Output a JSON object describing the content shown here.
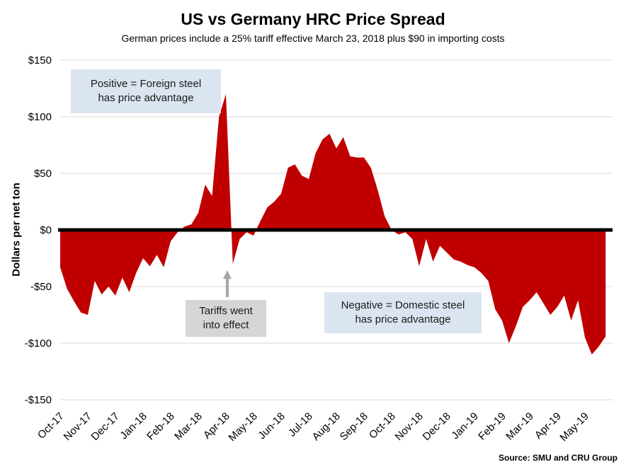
{
  "header": {
    "title": "US vs Germany HRC Price Spread",
    "subtitle": "German prices include a 25% tariff effective March 23, 2018 plus $90 in importing costs"
  },
  "chart_data": {
    "type": "area",
    "title": "US vs Germany HRC Price Spread",
    "subtitle": "German prices include a 25% tariff effective March 23, 2018 plus $90 in importing costs",
    "xlabel": "",
    "ylabel": "Dollars per net ton",
    "ylim": [
      -150,
      150
    ],
    "grid": true,
    "fill_color": "#c00000",
    "zero_line_color": "#000000",
    "grid_color": "#d9d9d9",
    "arrow_color": "#a6a6a6",
    "y_ticks": [
      {
        "value": 150,
        "label": "$150"
      },
      {
        "value": 100,
        "label": "$100"
      },
      {
        "value": 50,
        "label": "$50"
      },
      {
        "value": 0,
        "label": "$0"
      },
      {
        "value": -50,
        "label": "-$50"
      },
      {
        "value": -100,
        "label": "-$100"
      },
      {
        "value": -150,
        "label": "-$150"
      }
    ],
    "x_tick_labels": [
      "Oct-17",
      "Nov-17",
      "Dec-17",
      "Jan-18",
      "Feb-18",
      "Mar-18",
      "Apr-18",
      "May-18",
      "Jun-18",
      "Jul-18",
      "Aug-18",
      "Sep-18",
      "Oct-18",
      "Nov-18",
      "Dec-18",
      "Jan-19",
      "Feb-19",
      "Mar-19",
      "Apr-19",
      "May-19"
    ],
    "points_per_month": 4,
    "values": [
      -33,
      -52,
      -63,
      -73,
      -75,
      -45,
      -57,
      -50,
      -58,
      -42,
      -55,
      -38,
      -25,
      -32,
      -22,
      -33,
      -10,
      -2,
      3,
      5,
      15,
      40,
      30,
      100,
      120,
      -30,
      -8,
      -2,
      -5,
      8,
      20,
      25,
      32,
      55,
      58,
      48,
      45,
      68,
      80,
      85,
      72,
      82,
      65,
      64,
      64,
      55,
      35,
      12,
      0,
      -4,
      -2,
      -8,
      -32,
      -8,
      -28,
      -14,
      -20,
      -26,
      -28,
      -31,
      -33,
      -38,
      -45,
      -70,
      -80,
      -100,
      -85,
      -68,
      -62,
      -55,
      -65,
      -75,
      -68,
      -58,
      -80,
      -62,
      -95,
      -110,
      -103,
      -94
    ]
  },
  "annotations": {
    "positive": {
      "line1": "Positive = Foreign steel",
      "line2": "has price advantage"
    },
    "tariffs": {
      "line1": "Tariffs went",
      "line2": "into effect"
    },
    "negative": {
      "line1": "Negative = Domestic steel",
      "line2": "has price advantage"
    }
  },
  "source": "Source: SMU and CRU Group"
}
